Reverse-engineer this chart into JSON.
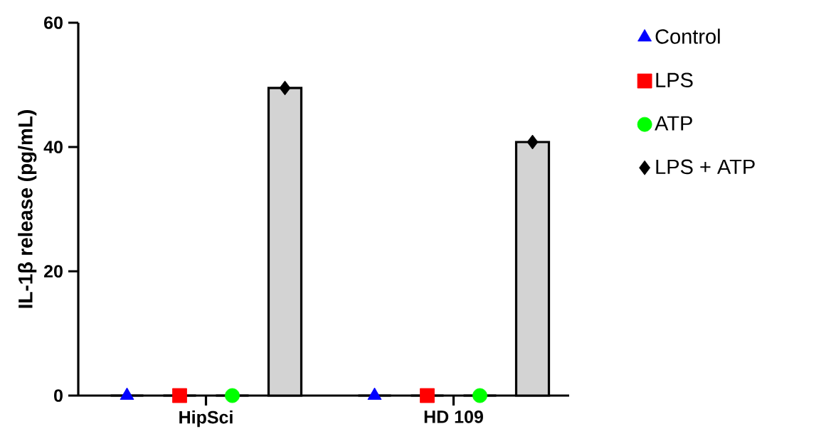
{
  "chart_data": {
    "type": "bar",
    "ylabel": "IL-1β release (pg/mL)",
    "categories": [
      "HipSci",
      "HD 109"
    ],
    "series": [
      {
        "color": "#d3d3d3",
        "values": [
          0,
          0
        ]
      },
      {
        "color": "#d3d3d3",
        "values": [
          0,
          0
        ]
      },
      {
        "color": "#d3d3d3",
        "values": [
          0,
          0
        ]
      },
      {
        "color": "#d3d3d3",
        "values": [
          49.5,
          40.8
        ]
      },
      {
        "type": "scatter",
        "name": "Control",
        "color": "#0000ff",
        "marker": "triangle",
        "values": [
          0,
          0
        ]
      },
      {
        "type": "scatter",
        "name": "LPS",
        "color": "#ff0000",
        "marker": "square",
        "values": [
          0,
          0
        ]
      },
      {
        "type": "scatter",
        "name": "ATP",
        "color": "#00ff00",
        "marker": "circle",
        "values": [
          0,
          0
        ]
      },
      {
        "type": "scatter",
        "name": "LPS + ATP",
        "color": "#000000",
        "marker": "diamond",
        "values": [
          49.5,
          40.8
        ]
      }
    ],
    "ylim": [
      0,
      60
    ],
    "yticks": [
      0,
      20,
      40,
      60
    ],
    "legend": "top right"
  }
}
